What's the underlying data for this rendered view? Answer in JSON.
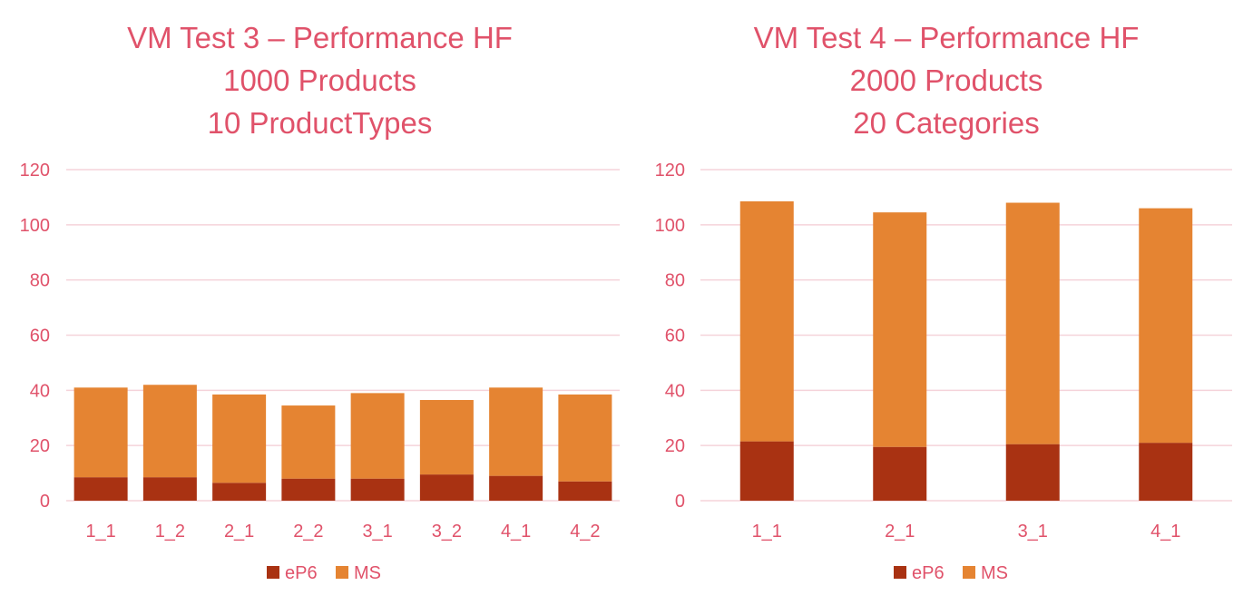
{
  "colors": {
    "ep6": "#a93212",
    "ms": "#e58432",
    "grid": "#f5d3da",
    "text": "#e0526a"
  },
  "chart_data": [
    {
      "type": "bar",
      "stacked": true,
      "title_lines": [
        "VM Test 3 – Performance HF",
        "1000 Products",
        "10 ProductTypes"
      ],
      "categories": [
        "1_1",
        "1_2",
        "2_1",
        "2_2",
        "3_1",
        "3_2",
        "4_1",
        "4_2"
      ],
      "series": [
        {
          "name": "eP6",
          "values": [
            8.5,
            8.5,
            6.5,
            8,
            8,
            9.5,
            9,
            7
          ]
        },
        {
          "name": "MS",
          "values": [
            32.5,
            33.5,
            32,
            26.5,
            31,
            27,
            32,
            31.5
          ]
        }
      ],
      "ylim": [
        0,
        120
      ],
      "yticks": [
        0,
        20,
        40,
        60,
        80,
        100,
        120
      ],
      "grid": true,
      "legend": "bottom-center"
    },
    {
      "type": "bar",
      "stacked": true,
      "title_lines": [
        "VM Test 4 – Performance HF",
        "2000 Products",
        "20 Categories"
      ],
      "categories": [
        "1_1",
        "2_1",
        "3_1",
        "4_1"
      ],
      "series": [
        {
          "name": "eP6",
          "values": [
            21.5,
            19.5,
            20.5,
            21
          ]
        },
        {
          "name": "MS",
          "values": [
            87,
            85,
            87.5,
            85
          ]
        }
      ],
      "ylim": [
        0,
        120
      ],
      "yticks": [
        0,
        20,
        40,
        60,
        80,
        100,
        120
      ],
      "grid": true,
      "legend": "bottom-center"
    }
  ]
}
